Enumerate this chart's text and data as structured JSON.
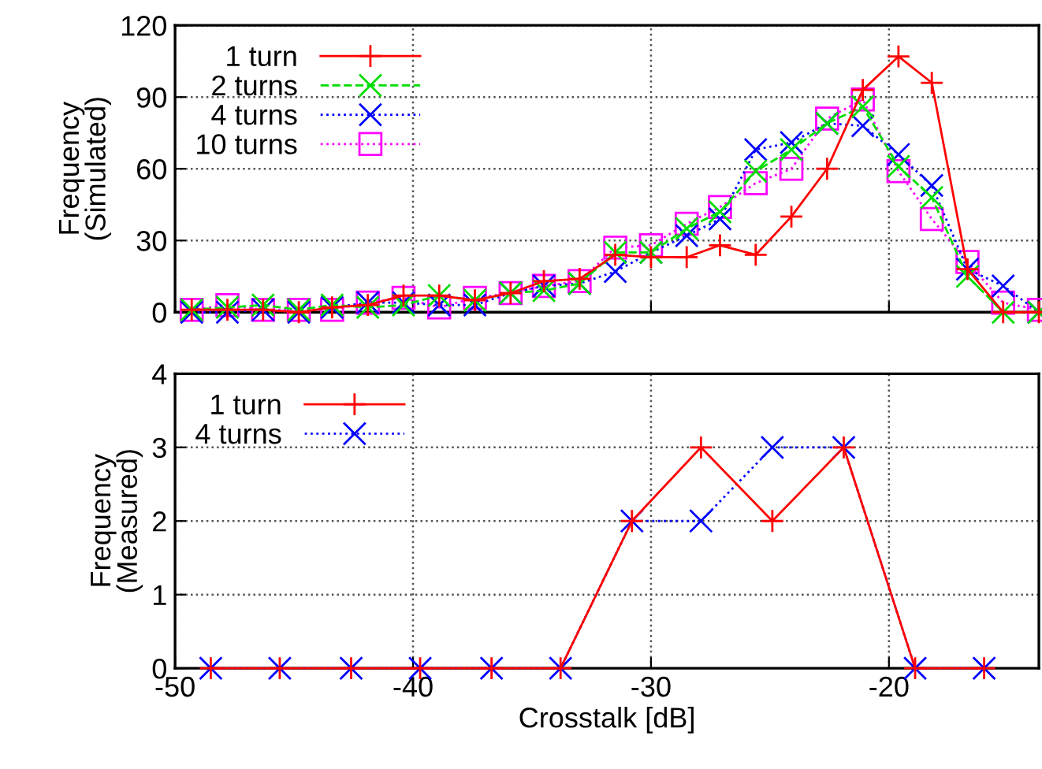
{
  "chart_data": [
    {
      "type": "line",
      "ylabel": "Frequency\n(Simulated)",
      "xlim": [
        -50,
        -13.7
      ],
      "xticks": [
        -50,
        -40,
        -30,
        -20
      ],
      "ylim": [
        0,
        120
      ],
      "yticks": [
        0,
        30,
        60,
        90,
        120
      ],
      "tick_labels": "y",
      "grid": true,
      "legend": "top left",
      "x": [
        -49.3,
        -47.8,
        -46.3,
        -44.8,
        -43.4,
        -41.9,
        -40.4,
        -38.9,
        -37.4,
        -35.9,
        -34.5,
        -33.0,
        -31.5,
        -30.0,
        -28.5,
        -27.1,
        -25.6,
        -24.1,
        -22.6,
        -21.1,
        -19.6,
        -18.2,
        -16.7,
        -15.2,
        -13.7
      ],
      "series": [
        {
          "name": "1 turn",
          "color": "#ff0000",
          "marker": "plus",
          "line_style": "solid",
          "values": [
            1,
            1,
            1,
            0,
            2,
            3,
            7,
            7,
            5,
            8,
            13,
            14,
            24,
            23,
            23,
            28,
            24,
            40,
            60,
            93,
            107,
            96,
            18,
            0,
            0
          ]
        },
        {
          "name": "2 turns",
          "color": "#00dd00",
          "marker": "cross",
          "line_style": "dashed",
          "values": [
            1,
            2,
            3,
            1,
            3,
            2,
            3,
            7,
            5,
            8,
            9,
            12,
            25,
            25,
            35,
            42,
            59,
            68,
            79,
            86,
            61,
            48,
            15,
            0,
            0
          ]
        },
        {
          "name": "4 turns",
          "color": "#0000ff",
          "marker": "cross",
          "line_style": "dotted",
          "values": [
            0,
            0,
            1,
            0,
            2,
            4,
            4,
            3,
            3,
            8,
            11,
            12,
            17,
            25,
            32,
            39,
            68,
            71,
            79,
            78,
            66,
            53,
            18,
            11,
            0
          ]
        },
        {
          "name": "10 turns",
          "color": "#ff00ff",
          "marker": "square",
          "line_style": "dotted",
          "values": [
            1,
            3,
            1,
            1,
            1,
            4,
            6,
            2,
            6,
            8,
            11,
            13,
            27,
            28,
            37,
            44,
            54,
            60,
            81,
            89,
            59,
            39,
            21,
            4,
            1
          ]
        }
      ]
    },
    {
      "type": "line",
      "xlabel": "Crosstalk [dB]",
      "ylabel": "Frequency\n(Measured)",
      "xlim": [
        -50,
        -13.7
      ],
      "xticks": [
        -50,
        -40,
        -30,
        -20
      ],
      "ylim": [
        0,
        4
      ],
      "yticks": [
        0,
        1,
        2,
        3,
        4
      ],
      "grid": true,
      "legend": "top left",
      "x": [
        -48.5,
        -45.6,
        -42.6,
        -39.7,
        -36.7,
        -33.8,
        -30.8,
        -27.9,
        -24.9,
        -21.9,
        -18.9,
        -16.0
      ],
      "series": [
        {
          "name": "1 turn",
          "color": "#ff0000",
          "marker": "plus",
          "line_style": "solid",
          "values": [
            0,
            0,
            0,
            0,
            0,
            0,
            2,
            3,
            2,
            3,
            0,
            0
          ]
        },
        {
          "name": "4 turns",
          "color": "#0000ff",
          "marker": "cross",
          "line_style": "dotted",
          "values": [
            0,
            0,
            0,
            0,
            0,
            0,
            2,
            2,
            3,
            3,
            0,
            0
          ]
        }
      ]
    }
  ]
}
